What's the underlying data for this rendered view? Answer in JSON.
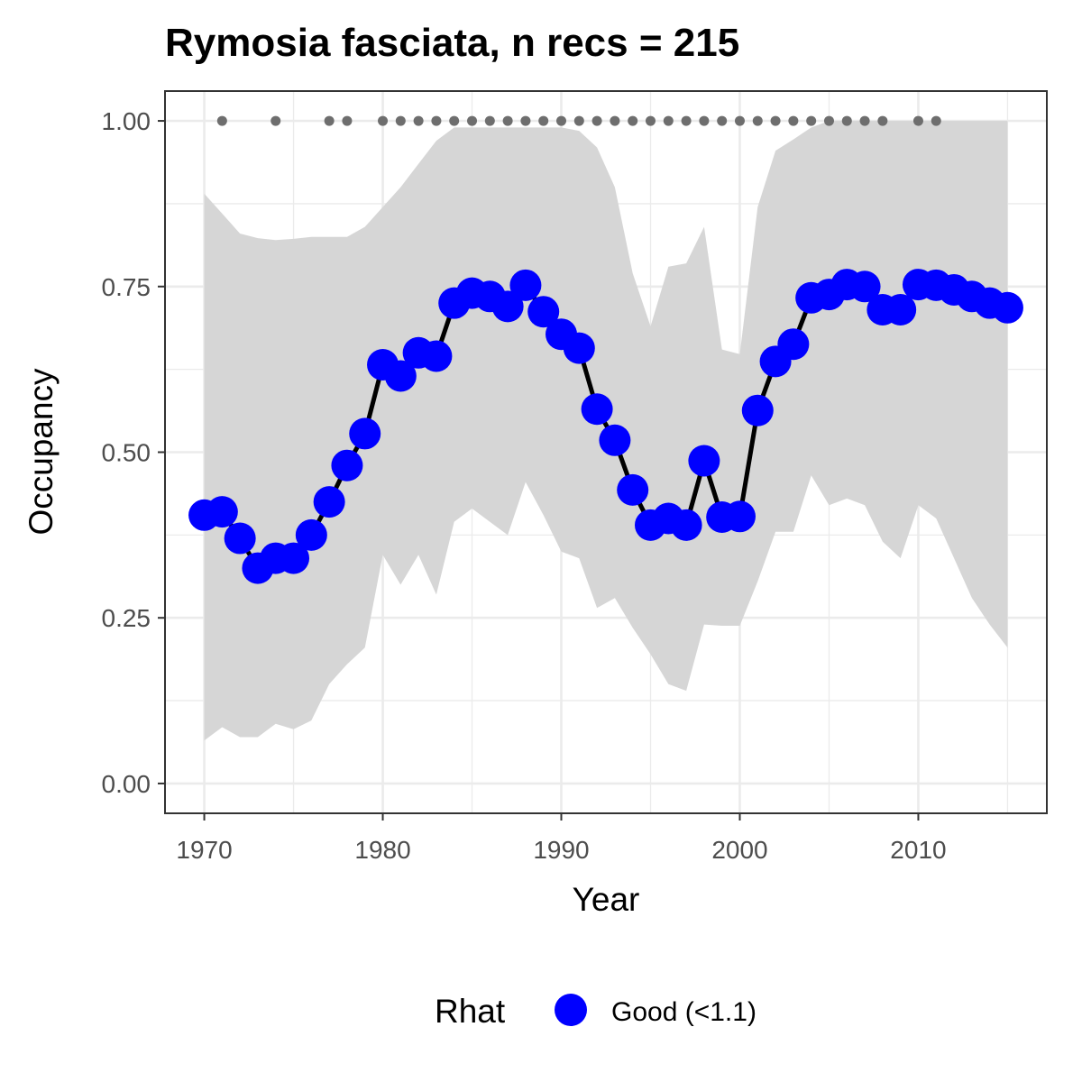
{
  "chart_data": {
    "type": "line",
    "title": "Rymosia fasciata, n recs = 215",
    "xlabel": "Year",
    "ylabel": "Occupancy",
    "xlim": [
      1967.8,
      2017.2
    ],
    "ylim": [
      -0.045,
      1.045
    ],
    "x_ticks": [
      1970,
      1980,
      1990,
      2000,
      2010
    ],
    "x_tick_labels": [
      "1970",
      "1980",
      "1990",
      "2000",
      "2010"
    ],
    "y_ticks": [
      0,
      0.25,
      0.5,
      0.75,
      1.0
    ],
    "y_tick_labels": [
      "0.00",
      "0.25",
      "0.50",
      "0.75",
      "1.00"
    ],
    "grid": true,
    "legend": {
      "title": "Rhat",
      "position": "bottom",
      "entries": [
        {
          "label": "Good (<1.1)",
          "color": "#0000ff"
        }
      ]
    },
    "colors": {
      "points": "#0000ff",
      "line": "#000000",
      "ribbon": "#d6d6d6",
      "record_dots": "#6e6e6e"
    },
    "series": [
      {
        "x": [
          1970,
          1971,
          1972,
          1973,
          1974,
          1975,
          1976,
          1977,
          1978,
          1979,
          1980,
          1981,
          1982,
          1983,
          1984,
          1985,
          1986,
          1987,
          1988,
          1989,
          1990,
          1991,
          1992,
          1993,
          1994,
          1995,
          1996,
          1997,
          1998,
          1999,
          2000,
          2001,
          2002,
          2003,
          2004,
          2005,
          2006,
          2007,
          2008,
          2009,
          2010,
          2011,
          2012,
          2013,
          2014,
          2015
        ],
        "mean": [
          0.405,
          0.41,
          0.37,
          0.325,
          0.34,
          0.34,
          0.375,
          0.425,
          0.48,
          0.528,
          0.632,
          0.615,
          0.65,
          0.645,
          0.725,
          0.74,
          0.735,
          0.72,
          0.752,
          0.712,
          0.678,
          0.657,
          0.565,
          0.518,
          0.443,
          0.39,
          0.4,
          0.39,
          0.487,
          0.402,
          0.403,
          0.563,
          0.637,
          0.663,
          0.733,
          0.738,
          0.753,
          0.75,
          0.715,
          0.715,
          0.753,
          0.752,
          0.745,
          0.735,
          0.725,
          0.718
        ],
        "upper": [
          0.89,
          0.86,
          0.83,
          0.823,
          0.82,
          0.822,
          0.825,
          0.825,
          0.825,
          0.84,
          0.87,
          0.9,
          0.935,
          0.97,
          0.99,
          0.99,
          0.99,
          0.99,
          0.99,
          0.99,
          0.99,
          0.985,
          0.96,
          0.9,
          0.77,
          0.69,
          0.78,
          0.785,
          0.84,
          0.655,
          0.648,
          0.87,
          0.955,
          0.972,
          0.99,
          1.0,
          1.0,
          1.0,
          1.0,
          1.0,
          1.0,
          1.0,
          1.0,
          1.0,
          1.0,
          1.0
        ],
        "lower": [
          0.065,
          0.085,
          0.07,
          0.07,
          0.09,
          0.082,
          0.095,
          0.15,
          0.18,
          0.205,
          0.345,
          0.3,
          0.345,
          0.285,
          0.395,
          0.415,
          0.395,
          0.375,
          0.455,
          0.405,
          0.35,
          0.34,
          0.265,
          0.28,
          0.235,
          0.195,
          0.15,
          0.14,
          0.24,
          0.238,
          0.238,
          0.305,
          0.38,
          0.38,
          0.465,
          0.42,
          0.43,
          0.42,
          0.365,
          0.34,
          0.42,
          0.4,
          0.34,
          0.28,
          0.24,
          0.205
        ]
      }
    ],
    "record_years": [
      1971,
      1974,
      1977,
      1978,
      1980,
      1981,
      1982,
      1983,
      1984,
      1985,
      1986,
      1987,
      1988,
      1989,
      1990,
      1991,
      1992,
      1993,
      1994,
      1995,
      1996,
      1997,
      1998,
      1999,
      2000,
      2001,
      2002,
      2003,
      2004,
      2005,
      2006,
      2007,
      2008,
      2010,
      2011
    ],
    "record_value": 1.0
  }
}
